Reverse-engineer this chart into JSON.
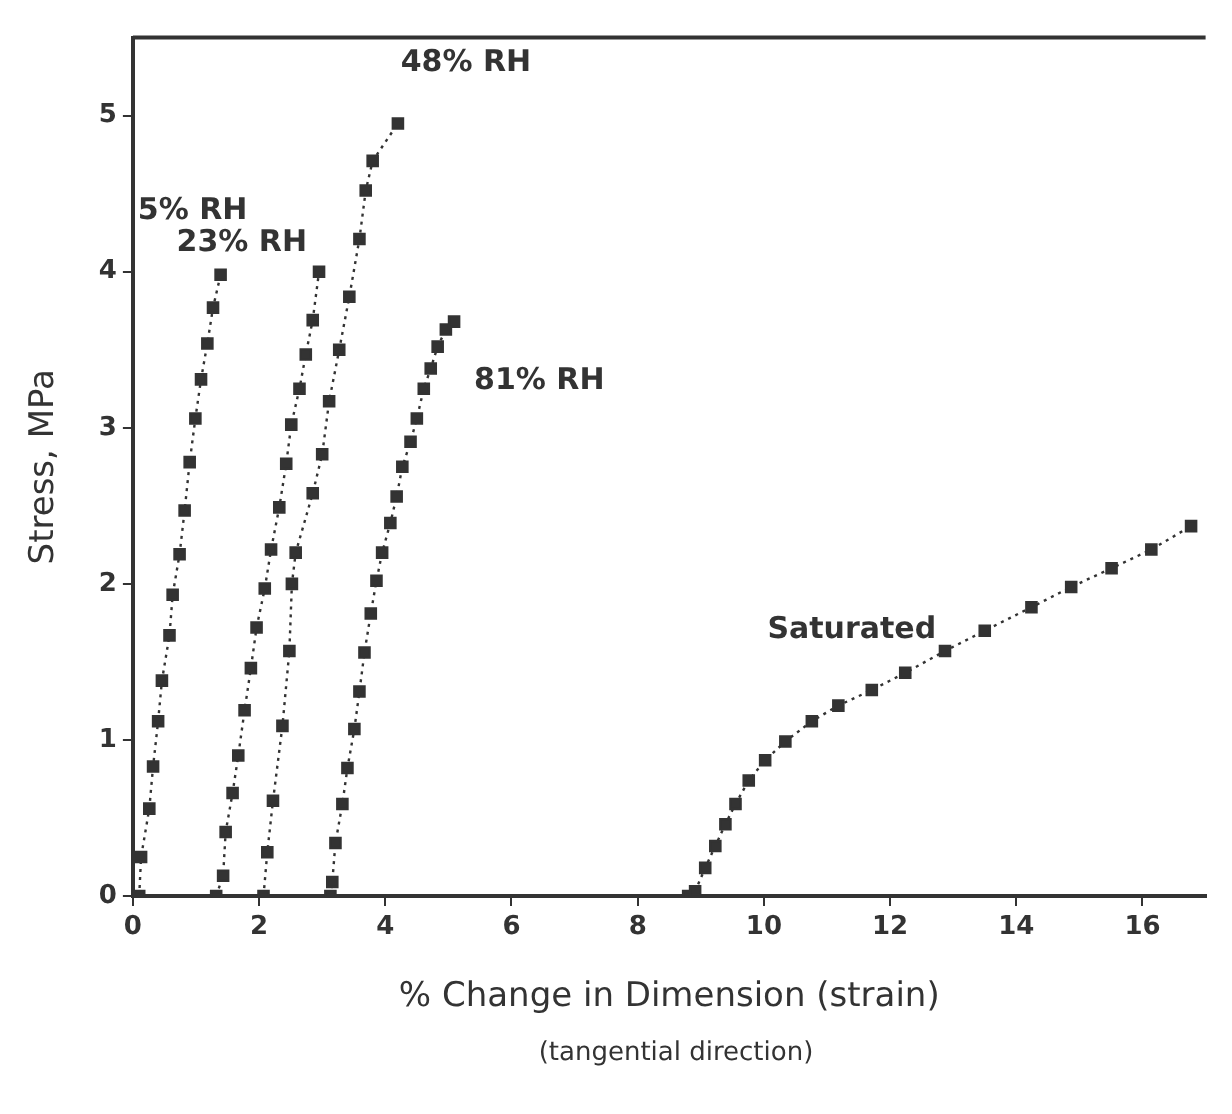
{
  "chart_data": {
    "type": "line",
    "xlabel": "% Change in Dimension (strain)",
    "ylabel": "Stress, MPa",
    "annotations": [
      "(tangential direction)"
    ],
    "xlim": [
      0,
      17
    ],
    "ylim": [
      0,
      5.5
    ],
    "xticks": [
      0,
      2,
      4,
      6,
      8,
      10,
      12,
      14,
      16
    ],
    "yticks": [
      0,
      1,
      2,
      3,
      4,
      5
    ],
    "grid": false,
    "legend": false,
    "marker": "square",
    "line_style": "dotted",
    "series": [
      {
        "name": "5% RH",
        "color": "#333333",
        "x": [
          0.1,
          0.13,
          0.26,
          0.32,
          0.4,
          0.46,
          0.58,
          0.63,
          0.74,
          0.82,
          0.9,
          0.99,
          1.08,
          1.18,
          1.27,
          1.39
        ],
        "values": [
          0,
          0.25,
          0.56,
          0.83,
          1.12,
          1.38,
          1.67,
          1.93,
          2.19,
          2.47,
          2.78,
          3.06,
          3.31,
          3.54,
          3.77,
          3.98
        ]
      },
      {
        "name": "23% RH",
        "color": "#333333",
        "x": [
          1.32,
          1.43,
          1.47,
          1.58,
          1.67,
          1.77,
          1.87,
          1.96,
          2.09,
          2.19,
          2.32,
          2.43,
          2.51,
          2.64,
          2.74,
          2.85,
          2.95
        ],
        "values": [
          0,
          0.13,
          0.41,
          0.66,
          0.9,
          1.19,
          1.46,
          1.72,
          1.97,
          2.22,
          2.49,
          2.77,
          3.02,
          3.25,
          3.47,
          3.69,
          4.0
        ]
      },
      {
        "name": "48% RH",
        "color": "#333333",
        "x": [
          2.07,
          2.13,
          2.22,
          2.37,
          2.48,
          2.52,
          2.58,
          2.85,
          3.0,
          3.11,
          3.27,
          3.43,
          3.59,
          3.69,
          3.8,
          4.2
        ],
        "values": [
          0,
          0.28,
          0.61,
          1.09,
          1.57,
          2.0,
          2.2,
          2.58,
          2.83,
          3.17,
          3.5,
          3.84,
          4.21,
          4.52,
          4.71,
          4.95
        ]
      },
      {
        "name": "81% RH",
        "color": "#333333",
        "x": [
          3.13,
          3.16,
          3.21,
          3.32,
          3.4,
          3.51,
          3.59,
          3.67,
          3.77,
          3.86,
          3.95,
          4.08,
          4.18,
          4.27,
          4.4,
          4.5,
          4.61,
          4.72,
          4.83,
          4.96,
          5.09
        ],
        "values": [
          0,
          0.09,
          0.34,
          0.59,
          0.82,
          1.07,
          1.31,
          1.56,
          1.81,
          2.02,
          2.2,
          2.39,
          2.56,
          2.75,
          2.91,
          3.06,
          3.25,
          3.38,
          3.52,
          3.63,
          3.68
        ]
      },
      {
        "name": "Saturated",
        "color": "#333333",
        "x": [
          8.8,
          8.91,
          9.07,
          9.23,
          9.39,
          9.55,
          9.76,
          10.02,
          10.34,
          10.76,
          11.18,
          11.71,
          12.24,
          12.87,
          13.5,
          14.24,
          14.87,
          15.51,
          16.14,
          16.77
        ],
        "values": [
          0,
          0.03,
          0.18,
          0.32,
          0.46,
          0.59,
          0.74,
          0.87,
          0.99,
          1.12,
          1.22,
          1.32,
          1.43,
          1.57,
          1.7,
          1.85,
          1.98,
          2.1,
          2.22,
          2.37
        ]
      }
    ]
  }
}
